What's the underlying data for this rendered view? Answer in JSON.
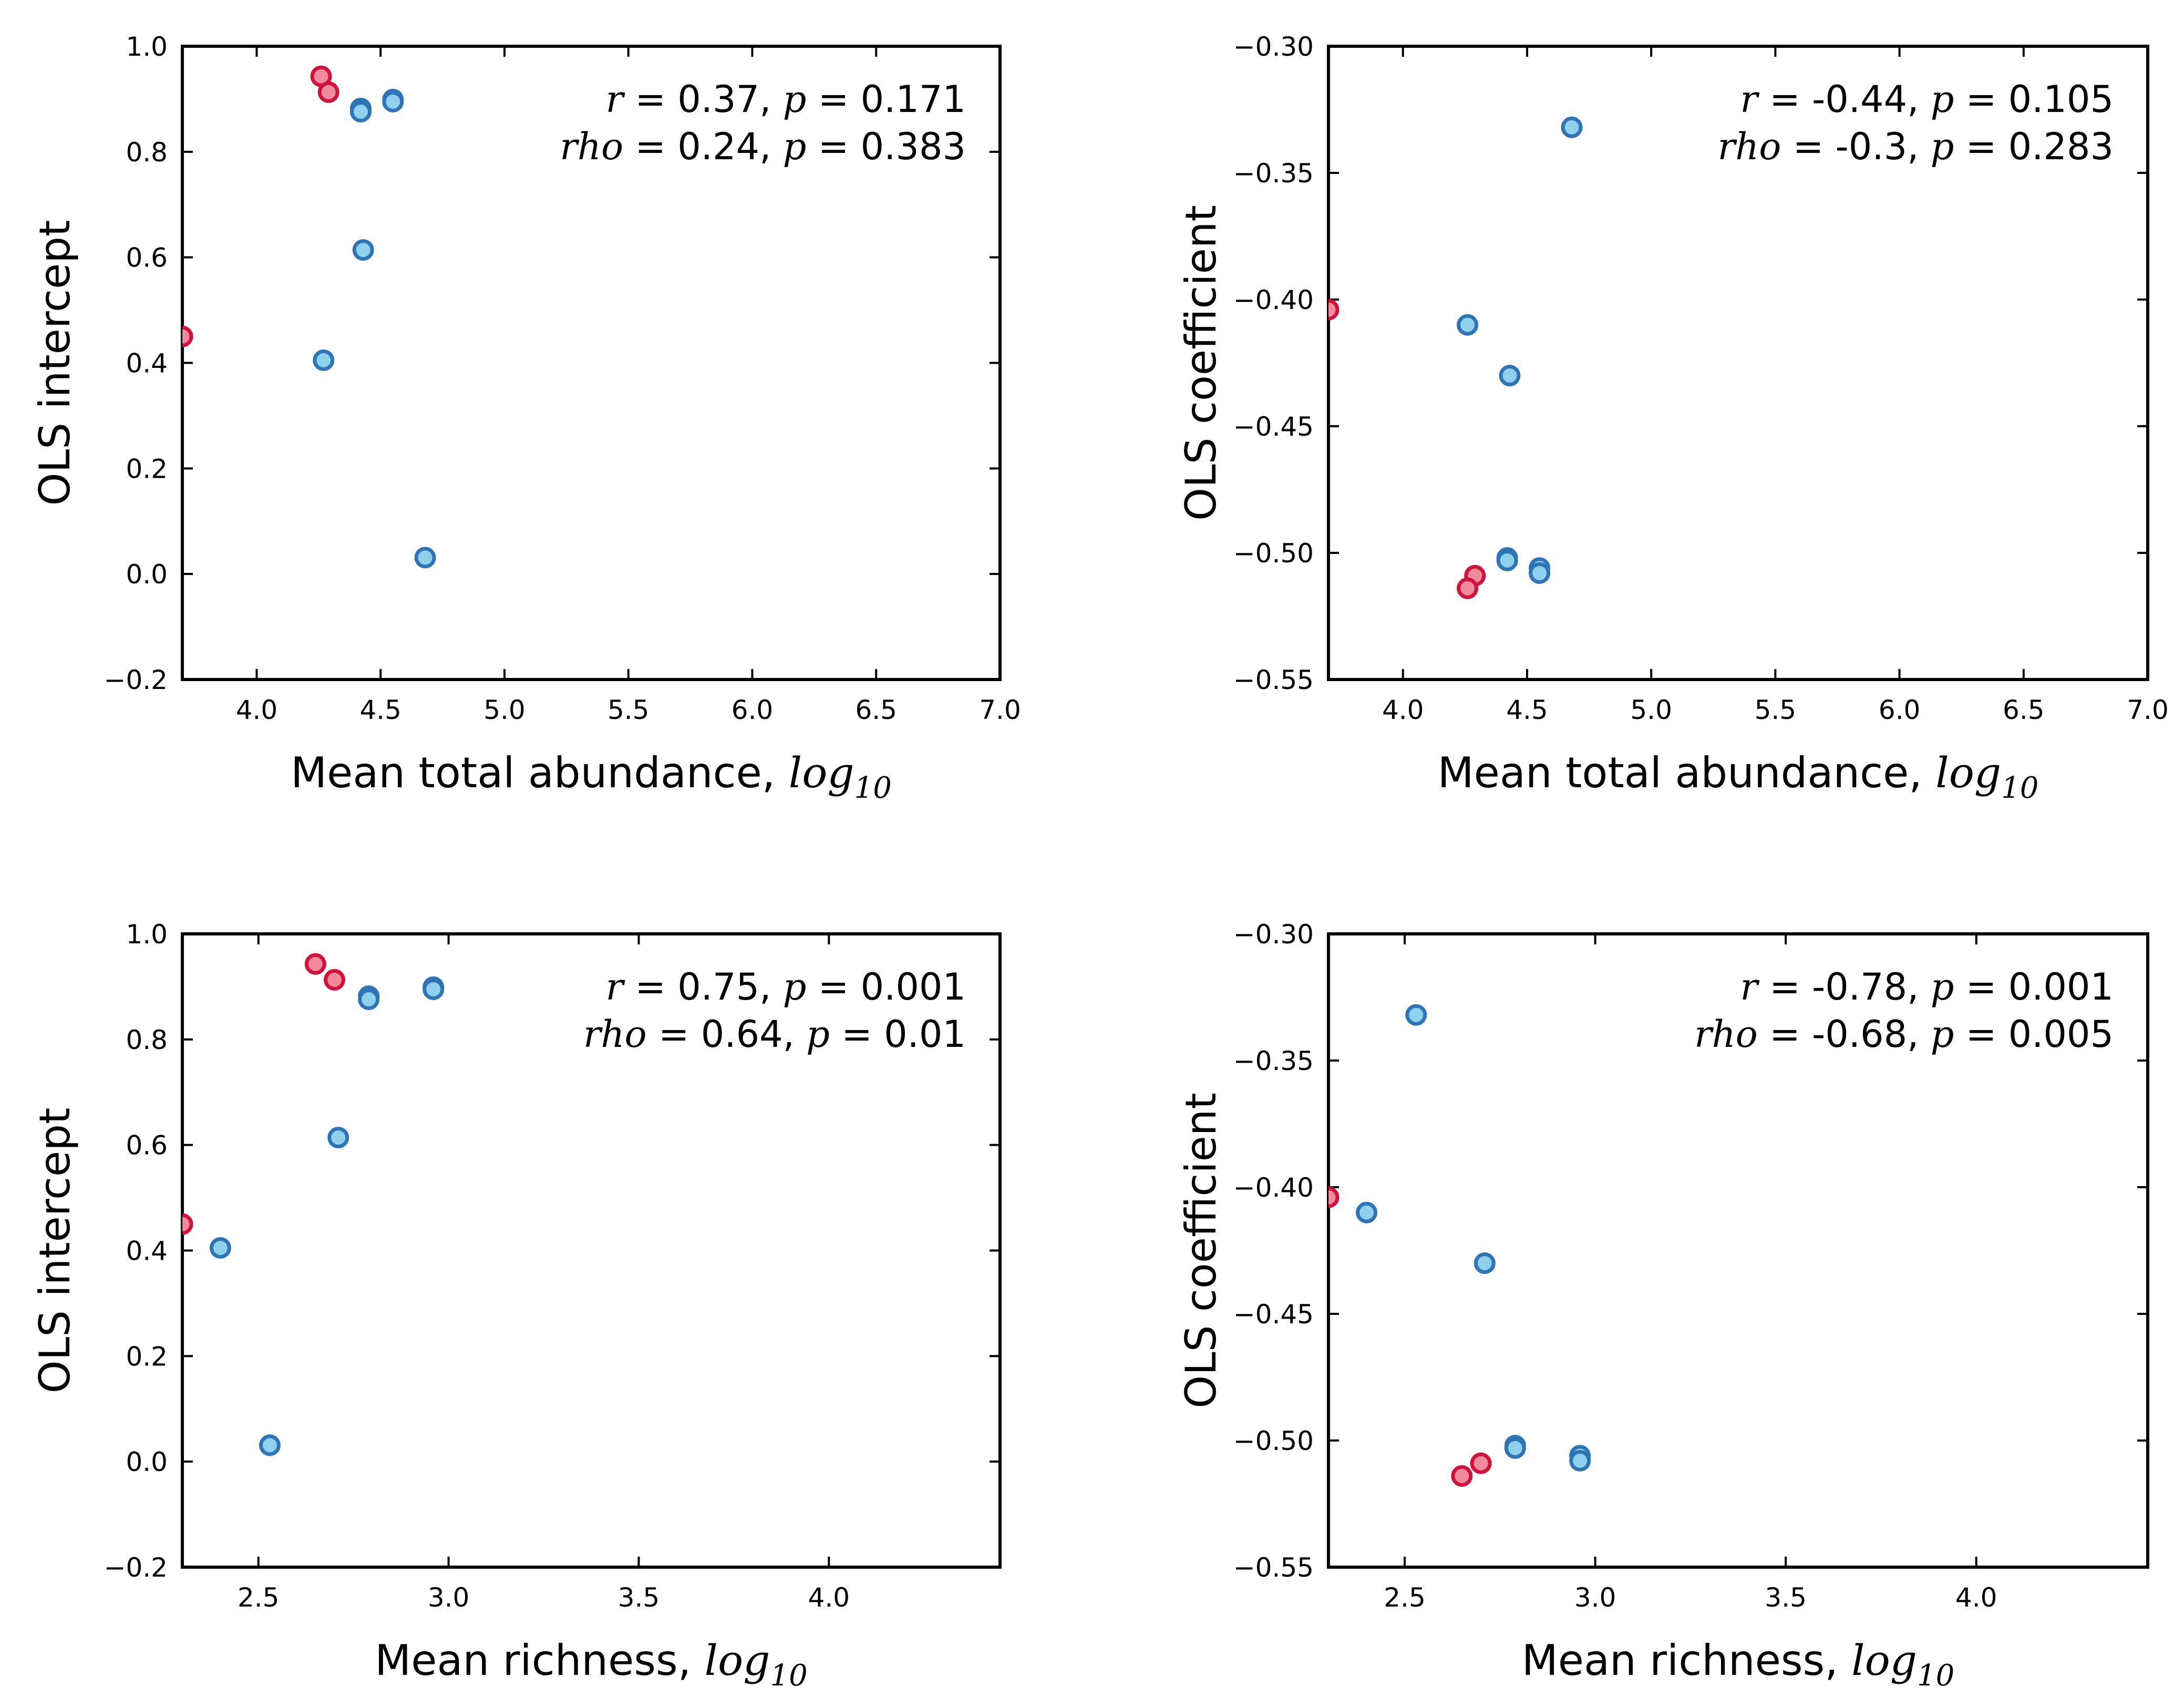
{
  "colors": {
    "red_face": "#f08a9c",
    "red_edge": "#d0133a",
    "blue_face": "#8fd0ec",
    "blue_edge": "#2f74b5"
  },
  "chart_data": [
    {
      "type": "scatter",
      "xlabel": "Mean total abundance, ",
      "xlabel_suffix": "log",
      "xlabel_sub": "10",
      "ylabel": "OLS intercept",
      "xlim": [
        3.7,
        7.0
      ],
      "ylim": [
        -0.2,
        1.0
      ],
      "xticks": [
        "4.0",
        "4.5",
        "5.0",
        "5.5",
        "6.0",
        "6.5",
        "7.0"
      ],
      "yticks": [
        "1.0",
        "0.8",
        "0.6",
        "0.4",
        "0.2",
        "0.0",
        "−0.2"
      ],
      "stats_line1": {
        "r_sym": "r",
        "r_val": " = 0.37, ",
        "p_sym": "p",
        "p_val": " = 0.171"
      },
      "stats_line2": {
        "r_sym": "rho",
        "r_val": " = 0.24, ",
        "p_sym": "p",
        "p_val": " = 0.383"
      },
      "series": [
        {
          "color": "red",
          "points": [
            [
              4.26,
              0.943
            ],
            [
              4.29,
              0.913
            ],
            [
              3.7,
              0.45
            ]
          ]
        },
        {
          "color": "blue",
          "points": [
            [
              4.42,
              0.882
            ],
            [
              4.42,
              0.876
            ],
            [
              4.55,
              0.899
            ],
            [
              4.55,
              0.895
            ],
            [
              4.43,
              0.614
            ],
            [
              4.27,
              0.405
            ],
            [
              4.68,
              0.031
            ]
          ]
        }
      ]
    },
    {
      "type": "scatter",
      "xlabel": "Mean total abundance, ",
      "xlabel_suffix": "log",
      "xlabel_sub": "10",
      "ylabel": "OLS coefficient",
      "xlim": [
        3.7,
        7.0
      ],
      "ylim": [
        -0.55,
        -0.3
      ],
      "xticks": [
        "4.0",
        "4.5",
        "5.0",
        "5.5",
        "6.0",
        "6.5",
        "7.0"
      ],
      "yticks": [
        "−0.30",
        "−0.35",
        "−0.40",
        "−0.45",
        "−0.50",
        "−0.55"
      ],
      "stats_line1": {
        "r_sym": "r",
        "r_val": " = -0.44, ",
        "p_sym": "p",
        "p_val": " = 0.105"
      },
      "stats_line2": {
        "r_sym": "rho",
        "r_val": " = -0.3, ",
        "p_sym": "p",
        "p_val": " = 0.283"
      },
      "series": [
        {
          "color": "red",
          "points": [
            [
              3.7,
              -0.404
            ],
            [
              4.29,
              -0.509
            ],
            [
              4.26,
              -0.514
            ]
          ]
        },
        {
          "color": "blue",
          "points": [
            [
              4.68,
              -0.332
            ],
            [
              4.26,
              -0.41
            ],
            [
              4.43,
              -0.43
            ],
            [
              4.42,
              -0.502
            ],
            [
              4.42,
              -0.503
            ],
            [
              4.55,
              -0.506
            ],
            [
              4.55,
              -0.508
            ]
          ]
        }
      ]
    },
    {
      "type": "scatter",
      "xlabel": "Mean richness, ",
      "xlabel_suffix": "log",
      "xlabel_sub": "10",
      "ylabel": "OLS intercept",
      "xlim": [
        2.3,
        4.45
      ],
      "ylim": [
        -0.2,
        1.0
      ],
      "xticks": [
        "2.5",
        "3.0",
        "3.5",
        "4.0"
      ],
      "yticks": [
        "1.0",
        "0.8",
        "0.6",
        "0.4",
        "0.2",
        "0.0",
        "−0.2"
      ],
      "stats_line1": {
        "r_sym": "r",
        "r_val": " = 0.75, ",
        "p_sym": "p",
        "p_val": " = 0.001"
      },
      "stats_line2": {
        "r_sym": "rho",
        "r_val": " = 0.64, ",
        "p_sym": "p",
        "p_val": " = 0.01"
      },
      "series": [
        {
          "color": "red",
          "points": [
            [
              2.65,
              0.943
            ],
            [
              2.7,
              0.913
            ],
            [
              2.3,
              0.45
            ]
          ]
        },
        {
          "color": "blue",
          "points": [
            [
              2.79,
              0.882
            ],
            [
              2.79,
              0.876
            ],
            [
              2.96,
              0.899
            ],
            [
              2.96,
              0.895
            ],
            [
              2.71,
              0.614
            ],
            [
              2.4,
              0.405
            ],
            [
              2.53,
              0.031
            ]
          ]
        }
      ]
    },
    {
      "type": "scatter",
      "xlabel": "Mean richness, ",
      "xlabel_suffix": "log",
      "xlabel_sub": "10",
      "ylabel": "OLS coefficient",
      "xlim": [
        2.3,
        4.45
      ],
      "ylim": [
        -0.55,
        -0.3
      ],
      "xticks": [
        "2.5",
        "3.0",
        "3.5",
        "4.0"
      ],
      "yticks": [
        "−0.30",
        "−0.35",
        "−0.40",
        "−0.45",
        "−0.50",
        "−0.55"
      ],
      "stats_line1": {
        "r_sym": "r",
        "r_val": " = -0.78, ",
        "p_sym": "p",
        "p_val": " = 0.001"
      },
      "stats_line2": {
        "r_sym": "rho",
        "r_val": " = -0.68, ",
        "p_sym": "p",
        "p_val": " = 0.005"
      },
      "series": [
        {
          "color": "red",
          "points": [
            [
              2.3,
              -0.404
            ],
            [
              2.7,
              -0.509
            ],
            [
              2.65,
              -0.514
            ]
          ]
        },
        {
          "color": "blue",
          "points": [
            [
              2.53,
              -0.332
            ],
            [
              2.4,
              -0.41
            ],
            [
              2.71,
              -0.43
            ],
            [
              2.79,
              -0.502
            ],
            [
              2.79,
              -0.503
            ],
            [
              2.96,
              -0.506
            ],
            [
              2.96,
              -0.508
            ]
          ]
        }
      ]
    }
  ]
}
